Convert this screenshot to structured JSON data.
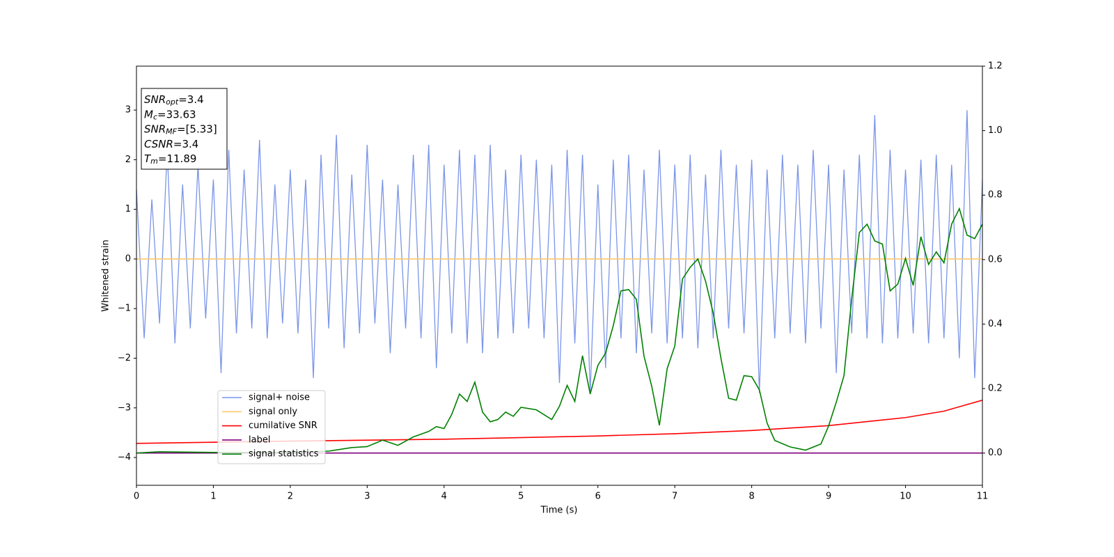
{
  "chart_data": {
    "type": "line",
    "xlabel": "Time (s)",
    "ylabel": "Whitened strain",
    "xlim": [
      0,
      11
    ],
    "ylim": [
      -4.56,
      3.885
    ],
    "y2lim": [
      -0.1,
      1.2
    ],
    "xticks": [
      0,
      1,
      2,
      3,
      4,
      5,
      6,
      7,
      8,
      9,
      10,
      11
    ],
    "yticks": [
      {
        "value": -4,
        "label": "−4"
      },
      {
        "value": -3,
        "label": "−3"
      },
      {
        "value": -2,
        "label": "−2"
      },
      {
        "value": -1,
        "label": "−1"
      },
      0,
      1,
      2,
      3
    ],
    "y2ticks": [
      {
        "value": 0,
        "label": "0.0"
      },
      0.2,
      0.4,
      0.6,
      0.8,
      {
        "value": 1,
        "label": "1.0"
      },
      1.2
    ],
    "legend": "lower left",
    "annotation_lines": [
      {
        "symbol": "SNR",
        "subscript": "opt",
        "text": "=3.4"
      },
      {
        "symbol": "M",
        "subscript": "c",
        "text": "=33.63"
      },
      {
        "symbol": "SNR",
        "subscript": "MF",
        "text": "=[5.33]"
      },
      {
        "symbol": "CSNR",
        "text": "=3.4"
      },
      {
        "symbol": "T",
        "subscript": "m",
        "text": "=11.89"
      }
    ],
    "series": [
      {
        "name": "signal+ noise",
        "color": "#7b95e8",
        "x": [
          0,
          0.1,
          0.2,
          0.3,
          0.4,
          0.5,
          0.6,
          0.7,
          0.8,
          0.9,
          1,
          1.1,
          1.2,
          1.3,
          1.4,
          1.5,
          1.6,
          1.7,
          1.8,
          1.9,
          2,
          2.1,
          2.2,
          2.3,
          2.4,
          2.5,
          2.6,
          2.7,
          2.8,
          2.9,
          3,
          3.1,
          3.2,
          3.3,
          3.4,
          3.5,
          3.6,
          3.7,
          3.8,
          3.9,
          4,
          4.1,
          4.2,
          4.3,
          4.4,
          4.5,
          4.6,
          4.7,
          4.8,
          4.9,
          5,
          5.1,
          5.2,
          5.3,
          5.4,
          5.5,
          5.6,
          5.7,
          5.8,
          5.9,
          6,
          6.1,
          6.2,
          6.3,
          6.4,
          6.5,
          6.6,
          6.7,
          6.8,
          6.9,
          7,
          7.1,
          7.2,
          7.3,
          7.4,
          7.5,
          7.6,
          7.7,
          7.8,
          7.9,
          8,
          8.1,
          8.2,
          8.3,
          8.4,
          8.5,
          8.6,
          8.7,
          8.8,
          8.9,
          9,
          9.1,
          9.2,
          9.3,
          9.4,
          9.5,
          9.6,
          9.7,
          9.8,
          9.9,
          10,
          10.1,
          10.2,
          10.3,
          10.4,
          10.5,
          10.6,
          10.7,
          10.8,
          10.9,
          11
        ],
        "values": [
          1.4,
          -1.6,
          1.2,
          -1.3,
          2.2,
          -1.7,
          1.5,
          -1.4,
          1.9,
          -1.2,
          1.6,
          -2.3,
          2.2,
          -1.5,
          1.8,
          -1.4,
          2.4,
          -1.6,
          1.5,
          -1.3,
          1.8,
          -1.5,
          1.6,
          -2.4,
          2.1,
          -1.4,
          2.5,
          -1.8,
          1.7,
          -1.5,
          2.3,
          -1.3,
          1.6,
          -1.9,
          1.5,
          -1.4,
          2.1,
          -1.6,
          2.3,
          -2.2,
          1.9,
          -1.5,
          2.2,
          -1.7,
          2.1,
          -1.9,
          2.3,
          -1.6,
          1.8,
          -1.5,
          2.1,
          -1.4,
          2.0,
          -1.6,
          1.9,
          -2.5,
          2.2,
          -1.7,
          2.1,
          -2.7,
          1.5,
          -2.2,
          2.0,
          -1.6,
          2.1,
          -1.9,
          1.8,
          -1.5,
          2.2,
          -1.7,
          1.9,
          -1.6,
          2.1,
          -1.8,
          1.7,
          -1.6,
          2.2,
          -1.4,
          1.9,
          -1.5,
          2.0,
          -2.7,
          1.8,
          -1.6,
          2.1,
          -1.5,
          1.9,
          -1.7,
          2.2,
          -1.4,
          1.9,
          -2.3,
          1.8,
          -1.5,
          2.1,
          -1.6,
          2.9,
          -1.7,
          2.2,
          -1.6,
          1.8,
          -1.5,
          2.0,
          -1.7,
          2.1,
          -1.6,
          1.9,
          -2.0,
          3.0,
          -2.4,
          1.6
        ]
      },
      {
        "name": "signal only",
        "color": "#fdc86b",
        "x": [
          0,
          11
        ],
        "values": [
          0,
          0
        ]
      },
      {
        "name": "cumilative SNR",
        "color": "#ff0000",
        "axis": "y2",
        "x": [
          0,
          2,
          4,
          6,
          7,
          8,
          9,
          10,
          10.5,
          11
        ],
        "values": [
          0.03,
          0.037,
          0.043,
          0.053,
          0.06,
          0.07,
          0.085,
          0.11,
          0.13,
          0.164
        ]
      },
      {
        "name": "label",
        "color": "#800080",
        "axis": "y2",
        "x": [
          0,
          11
        ],
        "values": [
          0,
          0
        ]
      },
      {
        "name": "signal statistics",
        "color": "#008000",
        "axis": "y2",
        "x": [
          0,
          0.3,
          1,
          2,
          2.5,
          2.8,
          3.0,
          3.2,
          3.4,
          3.6,
          3.8,
          3.9,
          4.0,
          4.1,
          4.2,
          4.3,
          4.4,
          4.5,
          4.6,
          4.7,
          4.8,
          4.9,
          5.0,
          5.2,
          5.4,
          5.5,
          5.6,
          5.7,
          5.8,
          5.9,
          6.0,
          6.1,
          6.2,
          6.3,
          6.4,
          6.5,
          6.6,
          6.7,
          6.8,
          6.9,
          7.0,
          7.1,
          7.2,
          7.3,
          7.4,
          7.5,
          7.6,
          7.7,
          7.8,
          7.9,
          8.0,
          8.1,
          8.2,
          8.3,
          8.5,
          8.7,
          8.9,
          9.0,
          9.1,
          9.2,
          9.3,
          9.4,
          9.5,
          9.6,
          9.7,
          9.8,
          9.9,
          10.0,
          10.1,
          10.2,
          10.3,
          10.4,
          10.5,
          10.6,
          10.7,
          10.8,
          10.9,
          11.0
        ],
        "values": [
          0,
          0.004,
          0.002,
          0.002,
          0.006,
          0.017,
          0.02,
          0.04,
          0.024,
          0.05,
          0.067,
          0.082,
          0.076,
          0.12,
          0.183,
          0.16,
          0.22,
          0.127,
          0.097,
          0.104,
          0.127,
          0.114,
          0.142,
          0.134,
          0.104,
          0.145,
          0.21,
          0.16,
          0.302,
          0.183,
          0.272,
          0.31,
          0.395,
          0.503,
          0.507,
          0.477,
          0.3,
          0.207,
          0.086,
          0.261,
          0.332,
          0.54,
          0.576,
          0.602,
          0.533,
          0.434,
          0.294,
          0.17,
          0.164,
          0.24,
          0.237,
          0.196,
          0.093,
          0.039,
          0.019,
          0.009,
          0.028,
          0.084,
          0.158,
          0.24,
          0.477,
          0.684,
          0.71,
          0.658,
          0.648,
          0.503,
          0.524,
          0.604,
          0.52,
          0.671,
          0.585,
          0.624,
          0.59,
          0.71,
          0.758,
          0.676,
          0.665,
          0.71
        ]
      }
    ]
  }
}
